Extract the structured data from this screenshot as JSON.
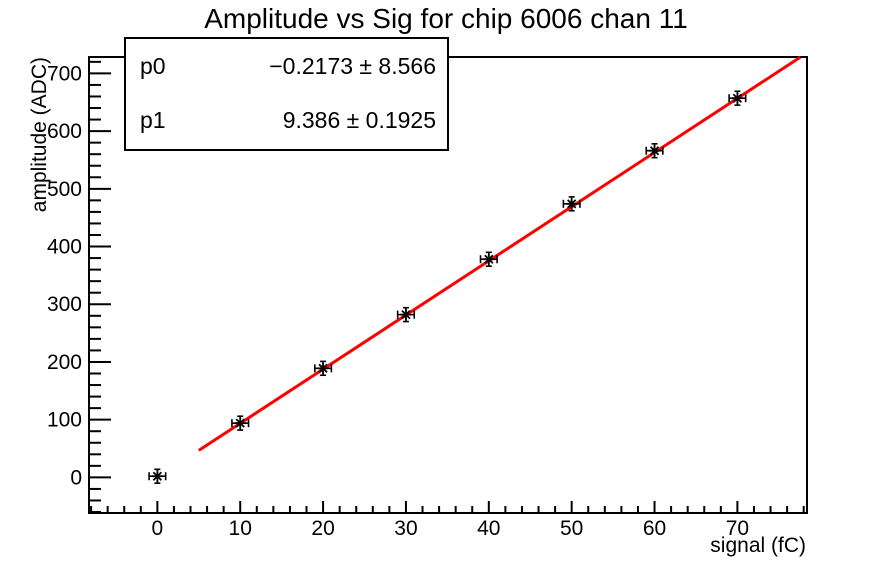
{
  "window": {
    "background": "#ffffff"
  },
  "colors": {
    "fit_line": "#ff0000",
    "marker": "#000000",
    "frame": "#000000",
    "stats_border": "#000000",
    "stats_fill": "#ffffff"
  },
  "chart_data": {
    "type": "scatter",
    "title": "Amplitude vs Sig for chip 6006 chan 11",
    "xlabel": "signal (fC)",
    "ylabel": "amplitude (ADC)",
    "x": [
      0,
      10,
      20,
      30,
      40,
      50,
      60,
      70
    ],
    "y": [
      2,
      94,
      189,
      282,
      378,
      474,
      566,
      657
    ],
    "x_err": 1.0,
    "y_err": 12,
    "xlim": [
      -8.25,
      78.4
    ],
    "ylim": [
      -61.7,
      728.4
    ],
    "x_ticks": [
      0,
      10,
      20,
      30,
      40,
      50,
      60,
      70
    ],
    "y_ticks": [
      0,
      100,
      200,
      300,
      400,
      500,
      600,
      700
    ],
    "x_minor_step": 2,
    "y_minor_step": 20,
    "grid": "off",
    "legend": "none",
    "marker_style": "asterisk",
    "fit": {
      "type": "linear",
      "p0": -0.2173,
      "p1": 9.386,
      "range": [
        5,
        77.6
      ],
      "color": "#ff0000"
    },
    "stats_box": {
      "rows": [
        {
          "label": "p0",
          "value": "−0.2173 ± 8.566"
        },
        {
          "label": "p1",
          "value": "9.386 ± 0.1925"
        }
      ]
    }
  }
}
